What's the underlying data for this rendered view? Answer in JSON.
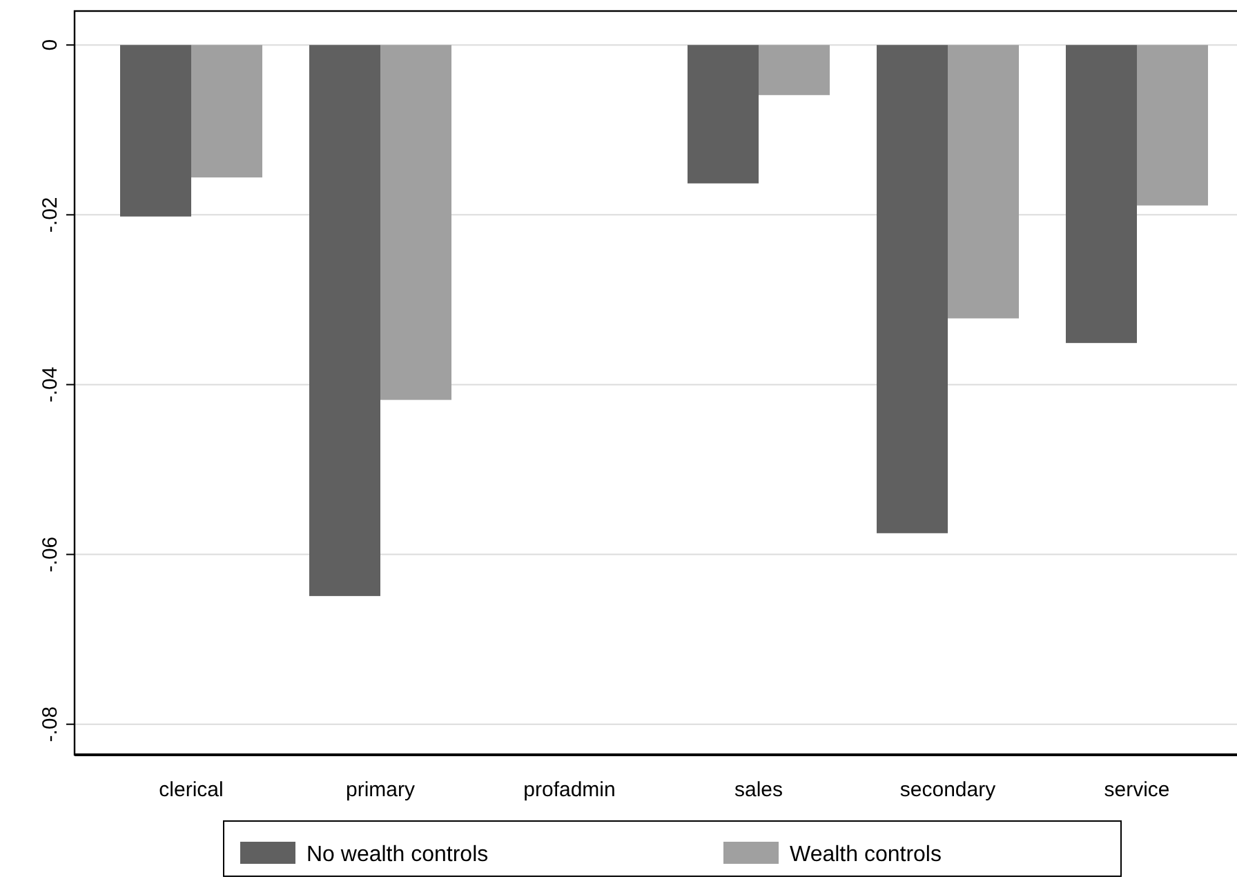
{
  "chart_data": {
    "type": "bar",
    "categories": [
      "clerical",
      "primary",
      "profadmin",
      "sales",
      "secondary",
      "service"
    ],
    "series": [
      {
        "name": "No wealth controls",
        "color": "#606060",
        "values": [
          -0.0202,
          -0.0649,
          null,
          -0.0163,
          -0.0575,
          -0.0351
        ]
      },
      {
        "name": "Wealth controls",
        "color": "#a0a0a0",
        "values": [
          -0.0156,
          -0.0418,
          null,
          -0.0059,
          -0.0322,
          -0.0189
        ]
      }
    ],
    "ylim": [
      -0.0836,
      0.004
    ],
    "yticks": [
      {
        "value": 0,
        "label": "0"
      },
      {
        "value": -0.02,
        "label": "-.02"
      },
      {
        "value": -0.04,
        "label": "-.04"
      },
      {
        "value": -0.06,
        "label": "-.06"
      },
      {
        "value": -0.08,
        "label": "-.08"
      }
    ],
    "grid": "y",
    "legend": "bottom"
  }
}
